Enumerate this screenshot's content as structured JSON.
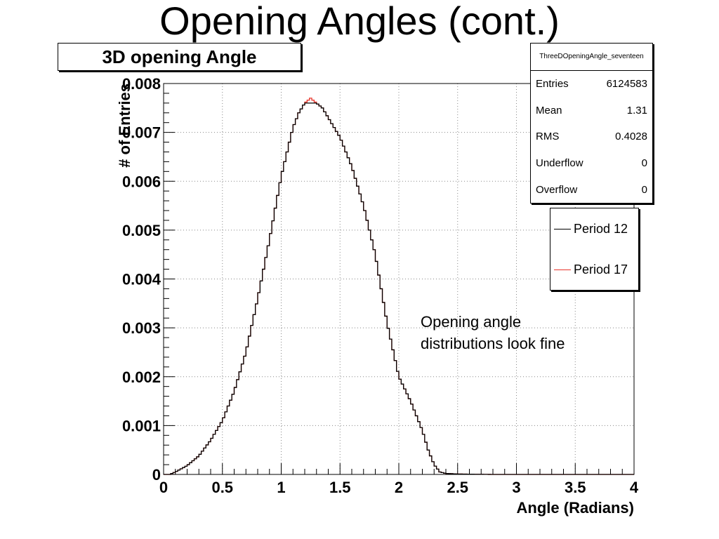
{
  "slide_title": "Opening Angles (cont.)",
  "histogram_title": "3D opening Angle",
  "stats": {
    "name": "ThreeDOpeningAngle_seventeen",
    "rows": [
      {
        "label": "Entries",
        "value": "6124583"
      },
      {
        "label": "Mean",
        "value": "1.31"
      },
      {
        "label": "RMS",
        "value": "0.4028"
      },
      {
        "label": "Underflow",
        "value": "0"
      },
      {
        "label": "Overflow",
        "value": "0"
      }
    ]
  },
  "legend": [
    {
      "label": "Period 12",
      "color": "#000000"
    },
    {
      "label": "Period 17",
      "color": "#e8342a"
    }
  ],
  "annotation": [
    "Opening angle",
    "distributions look fine"
  ],
  "chart_data": {
    "type": "line",
    "title": "3D opening Angle",
    "xlabel": "Angle (Radians)",
    "ylabel": "# of Entries",
    "xlim": [
      0,
      4
    ],
    "ylim": [
      0,
      0.008
    ],
    "x_ticks": [
      "0",
      "0.5",
      "1",
      "1.5",
      "2",
      "2.5",
      "3",
      "3.5",
      "4"
    ],
    "y_ticks": [
      "0",
      "0.001",
      "0.002",
      "0.003",
      "0.004",
      "0.005",
      "0.006",
      "0.007",
      "0.008"
    ],
    "grid": true,
    "legend_position": "right",
    "series": [
      {
        "name": "Period 12",
        "color": "#000000",
        "x": [
          0,
          0.05,
          0.1,
          0.2,
          0.3,
          0.4,
          0.5,
          0.6,
          0.7,
          0.8,
          0.9,
          1.0,
          1.1,
          1.15,
          1.2,
          1.25,
          1.3,
          1.35,
          1.4,
          1.5,
          1.6,
          1.7,
          1.8,
          1.9,
          2.0,
          2.1,
          2.2,
          2.25,
          2.3,
          2.35,
          2.4,
          2.5,
          2.6,
          2.7,
          2.8,
          3.0,
          3.5,
          4.0
        ],
        "values": [
          0,
          0,
          5e-05,
          0.00018,
          0.00038,
          0.0007,
          0.0011,
          0.0017,
          0.0025,
          0.0036,
          0.0048,
          0.0061,
          0.0071,
          0.0074,
          0.0076,
          0.0076,
          0.0076,
          0.0075,
          0.0073,
          0.0069,
          0.0063,
          0.0055,
          0.0045,
          0.0031,
          0.002,
          0.0015,
          0.0009,
          0.0005,
          0.0002,
          5e-05,
          2e-05,
          1e-05,
          5e-06,
          3e-06,
          0,
          0,
          0,
          0
        ]
      },
      {
        "name": "Period 17",
        "color": "#e8342a",
        "x": [
          0,
          0.05,
          0.1,
          0.2,
          0.3,
          0.4,
          0.5,
          0.6,
          0.7,
          0.8,
          0.9,
          1.0,
          1.1,
          1.15,
          1.2,
          1.25,
          1.3,
          1.35,
          1.4,
          1.5,
          1.6,
          1.7,
          1.8,
          1.9,
          2.0,
          2.1,
          2.2,
          2.25,
          2.3,
          2.35,
          2.4,
          2.5,
          2.6,
          2.7,
          2.8,
          3.0,
          3.5,
          4.0
        ],
        "values": [
          0,
          0,
          5e-05,
          0.00018,
          0.00038,
          0.0007,
          0.0011,
          0.0017,
          0.0025,
          0.0036,
          0.0048,
          0.0061,
          0.0071,
          0.0074,
          0.0076,
          0.0077,
          0.0076,
          0.0075,
          0.0073,
          0.0069,
          0.0063,
          0.0055,
          0.0045,
          0.0031,
          0.002,
          0.0015,
          0.0009,
          0.0005,
          0.0002,
          5e-05,
          2e-05,
          1e-05,
          5e-06,
          3e-06,
          0,
          0,
          0,
          0
        ]
      }
    ]
  }
}
